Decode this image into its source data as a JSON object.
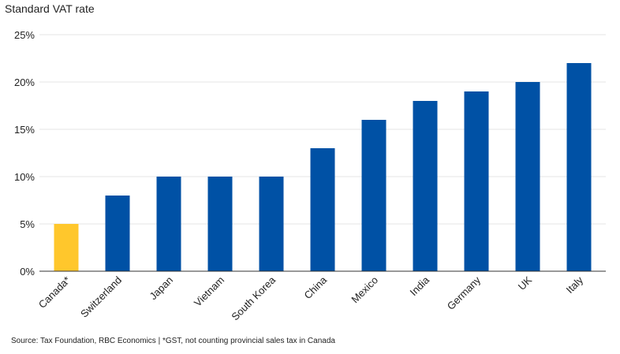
{
  "chart_data": {
    "type": "bar",
    "title": "Standard VAT rate",
    "xlabel": "",
    "ylabel": "",
    "categories": [
      "Canada*",
      "Switzerland",
      "Japan",
      "Vietnam",
      "South Korea",
      "China",
      "Mexico",
      "India",
      "Germany",
      "UK",
      "Italy"
    ],
    "values": [
      5,
      8,
      10,
      10,
      10,
      13,
      16,
      18,
      19,
      20,
      22
    ],
    "ylim": [
      0,
      25
    ],
    "yticks": [
      0,
      5,
      10,
      15,
      20,
      25
    ],
    "ytick_labels": [
      "0%",
      "5%",
      "10%",
      "15%",
      "20%",
      "25%"
    ],
    "grid": true,
    "colors": {
      "default": "#0051A5",
      "highlight": "#FFC72C",
      "highlight_category": "Canada*",
      "gridline": "#e6e6e6",
      "baseline": "#333333"
    }
  },
  "footnote": "Source: Tax Foundation, RBC Economics | *GST, not counting provincial sales tax in Canada"
}
